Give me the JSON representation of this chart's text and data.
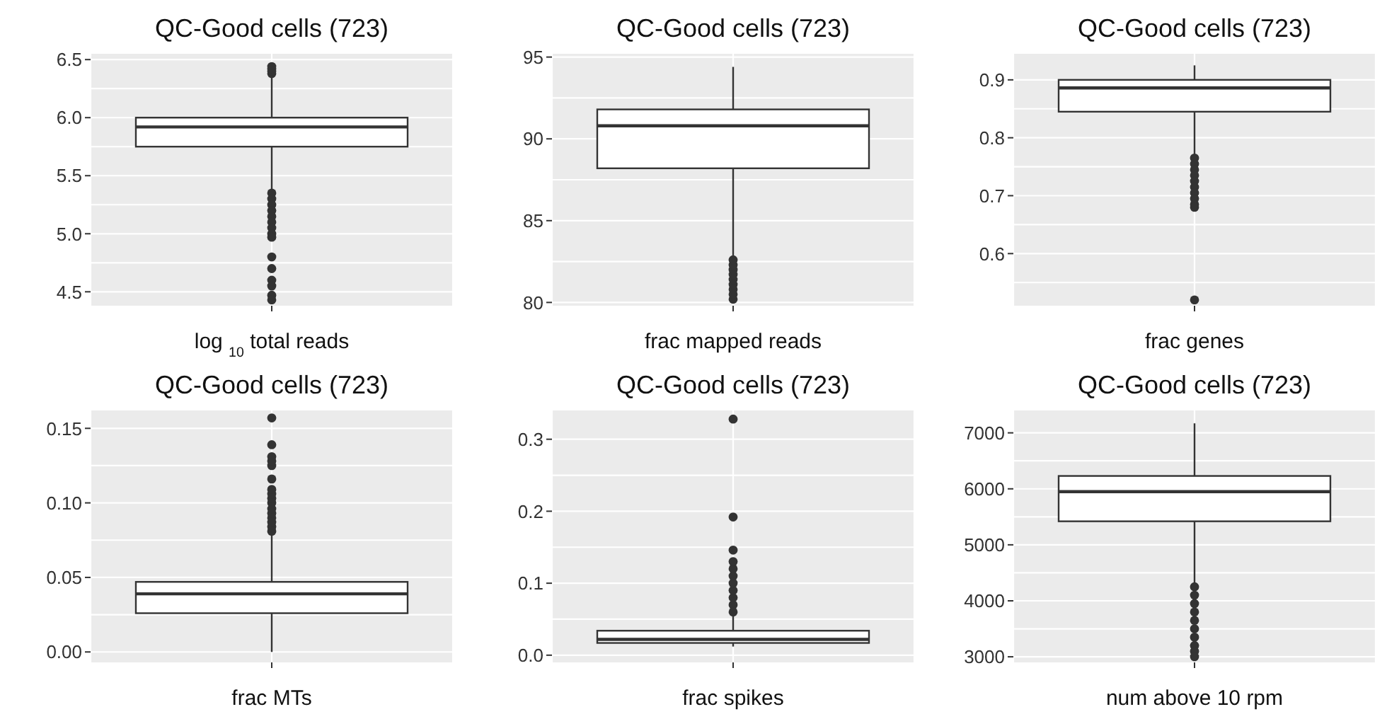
{
  "chart_data": [
    {
      "type": "box",
      "title": "QC-Good cells (723)",
      "xlabel": "log $_{10}$ total reads",
      "categories": [
        null
      ],
      "color": "#333333",
      "grid": true,
      "ylim": [
        4.38,
        6.55
      ],
      "yticks": [
        4.5,
        {
          "value": 5,
          "label": "5.0"
        },
        5.5,
        {
          "value": 6,
          "label": "6.0"
        },
        6.5
      ],
      "boxes": [
        {
          "low": 5.38,
          "q1": 5.75,
          "median": 5.92,
          "q3": 6.0,
          "high": 6.35,
          "outliers": [
            6.38,
            6.4,
            6.42,
            6.44,
            5.35,
            5.3,
            5.25,
            5.2,
            5.15,
            5.1,
            5.05,
            5.0,
            4.97,
            4.8,
            4.7,
            4.6,
            4.55,
            4.47,
            4.43
          ]
        }
      ]
    },
    {
      "type": "box",
      "title": "QC-Good cells (723)",
      "xlabel": "frac mapped reads",
      "categories": [
        null
      ],
      "color": "#333333",
      "grid": true,
      "ylim": [
        79.8,
        95.2
      ],
      "yticks": [
        80,
        85,
        90,
        95
      ],
      "boxes": [
        {
          "low": 82.7,
          "q1": 88.2,
          "median": 90.8,
          "q3": 91.8,
          "high": 94.4,
          "outliers": [
            80.2,
            80.5,
            80.8,
            81.1,
            81.4,
            81.7,
            82.0,
            82.3,
            82.6
          ]
        }
      ]
    },
    {
      "type": "box",
      "title": "QC-Good cells (723)",
      "xlabel": "frac genes",
      "categories": [
        null
      ],
      "color": "#333333",
      "grid": true,
      "ylim": [
        0.51,
        0.945
      ],
      "yticks": [
        0.6,
        0.7,
        0.8,
        0.9
      ],
      "boxes": [
        {
          "low": 0.77,
          "q1": 0.845,
          "median": 0.886,
          "q3": 0.9,
          "high": 0.925,
          "outliers": [
            0.765,
            0.755,
            0.745,
            0.735,
            0.725,
            0.715,
            0.705,
            0.695,
            0.685,
            0.68,
            0.52
          ]
        }
      ]
    },
    {
      "type": "box",
      "title": "QC-Good cells (723)",
      "xlabel": "frac MTs",
      "categories": [
        null
      ],
      "color": "#333333",
      "grid": true,
      "ylim": [
        -0.007,
        0.162
      ],
      "yticks": [
        {
          "value": 0,
          "label": "0.00"
        },
        0.05,
        {
          "value": 0.1,
          "label": "0.10"
        },
        0.15
      ],
      "boxes": [
        {
          "low": 0.0,
          "q1": 0.026,
          "median": 0.039,
          "q3": 0.047,
          "high": 0.079,
          "outliers": [
            0.081,
            0.084,
            0.087,
            0.09,
            0.093,
            0.096,
            0.1,
            0.103,
            0.106,
            0.109,
            0.116,
            0.125,
            0.128,
            0.131,
            0.139,
            0.157
          ]
        }
      ]
    },
    {
      "type": "box",
      "title": "QC-Good cells (723)",
      "xlabel": "frac spikes",
      "categories": [
        null
      ],
      "color": "#333333",
      "grid": true,
      "ylim": [
        -0.01,
        0.34
      ],
      "yticks": [
        {
          "value": 0,
          "label": "0.0"
        },
        0.1,
        0.2,
        0.3
      ],
      "boxes": [
        {
          "low": 0.012,
          "q1": 0.017,
          "median": 0.022,
          "q3": 0.034,
          "high": 0.058,
          "outliers": [
            0.06,
            0.07,
            0.08,
            0.09,
            0.1,
            0.11,
            0.12,
            0.13,
            0.146,
            0.192,
            0.328
          ]
        }
      ]
    },
    {
      "type": "box",
      "title": "QC-Good cells (723)",
      "xlabel": "num above 10 rpm",
      "categories": [
        null
      ],
      "color": "#333333",
      "grid": true,
      "ylim": [
        2900,
        7400
      ],
      "yticks": [
        3000,
        4000,
        5000,
        6000,
        7000
      ],
      "boxes": [
        {
          "low": 4280,
          "q1": 5420,
          "median": 5950,
          "q3": 6230,
          "high": 7170,
          "outliers": [
            4250,
            4100,
            3950,
            3800,
            3650,
            3500,
            3350,
            3200,
            3100,
            3000
          ]
        }
      ]
    }
  ]
}
